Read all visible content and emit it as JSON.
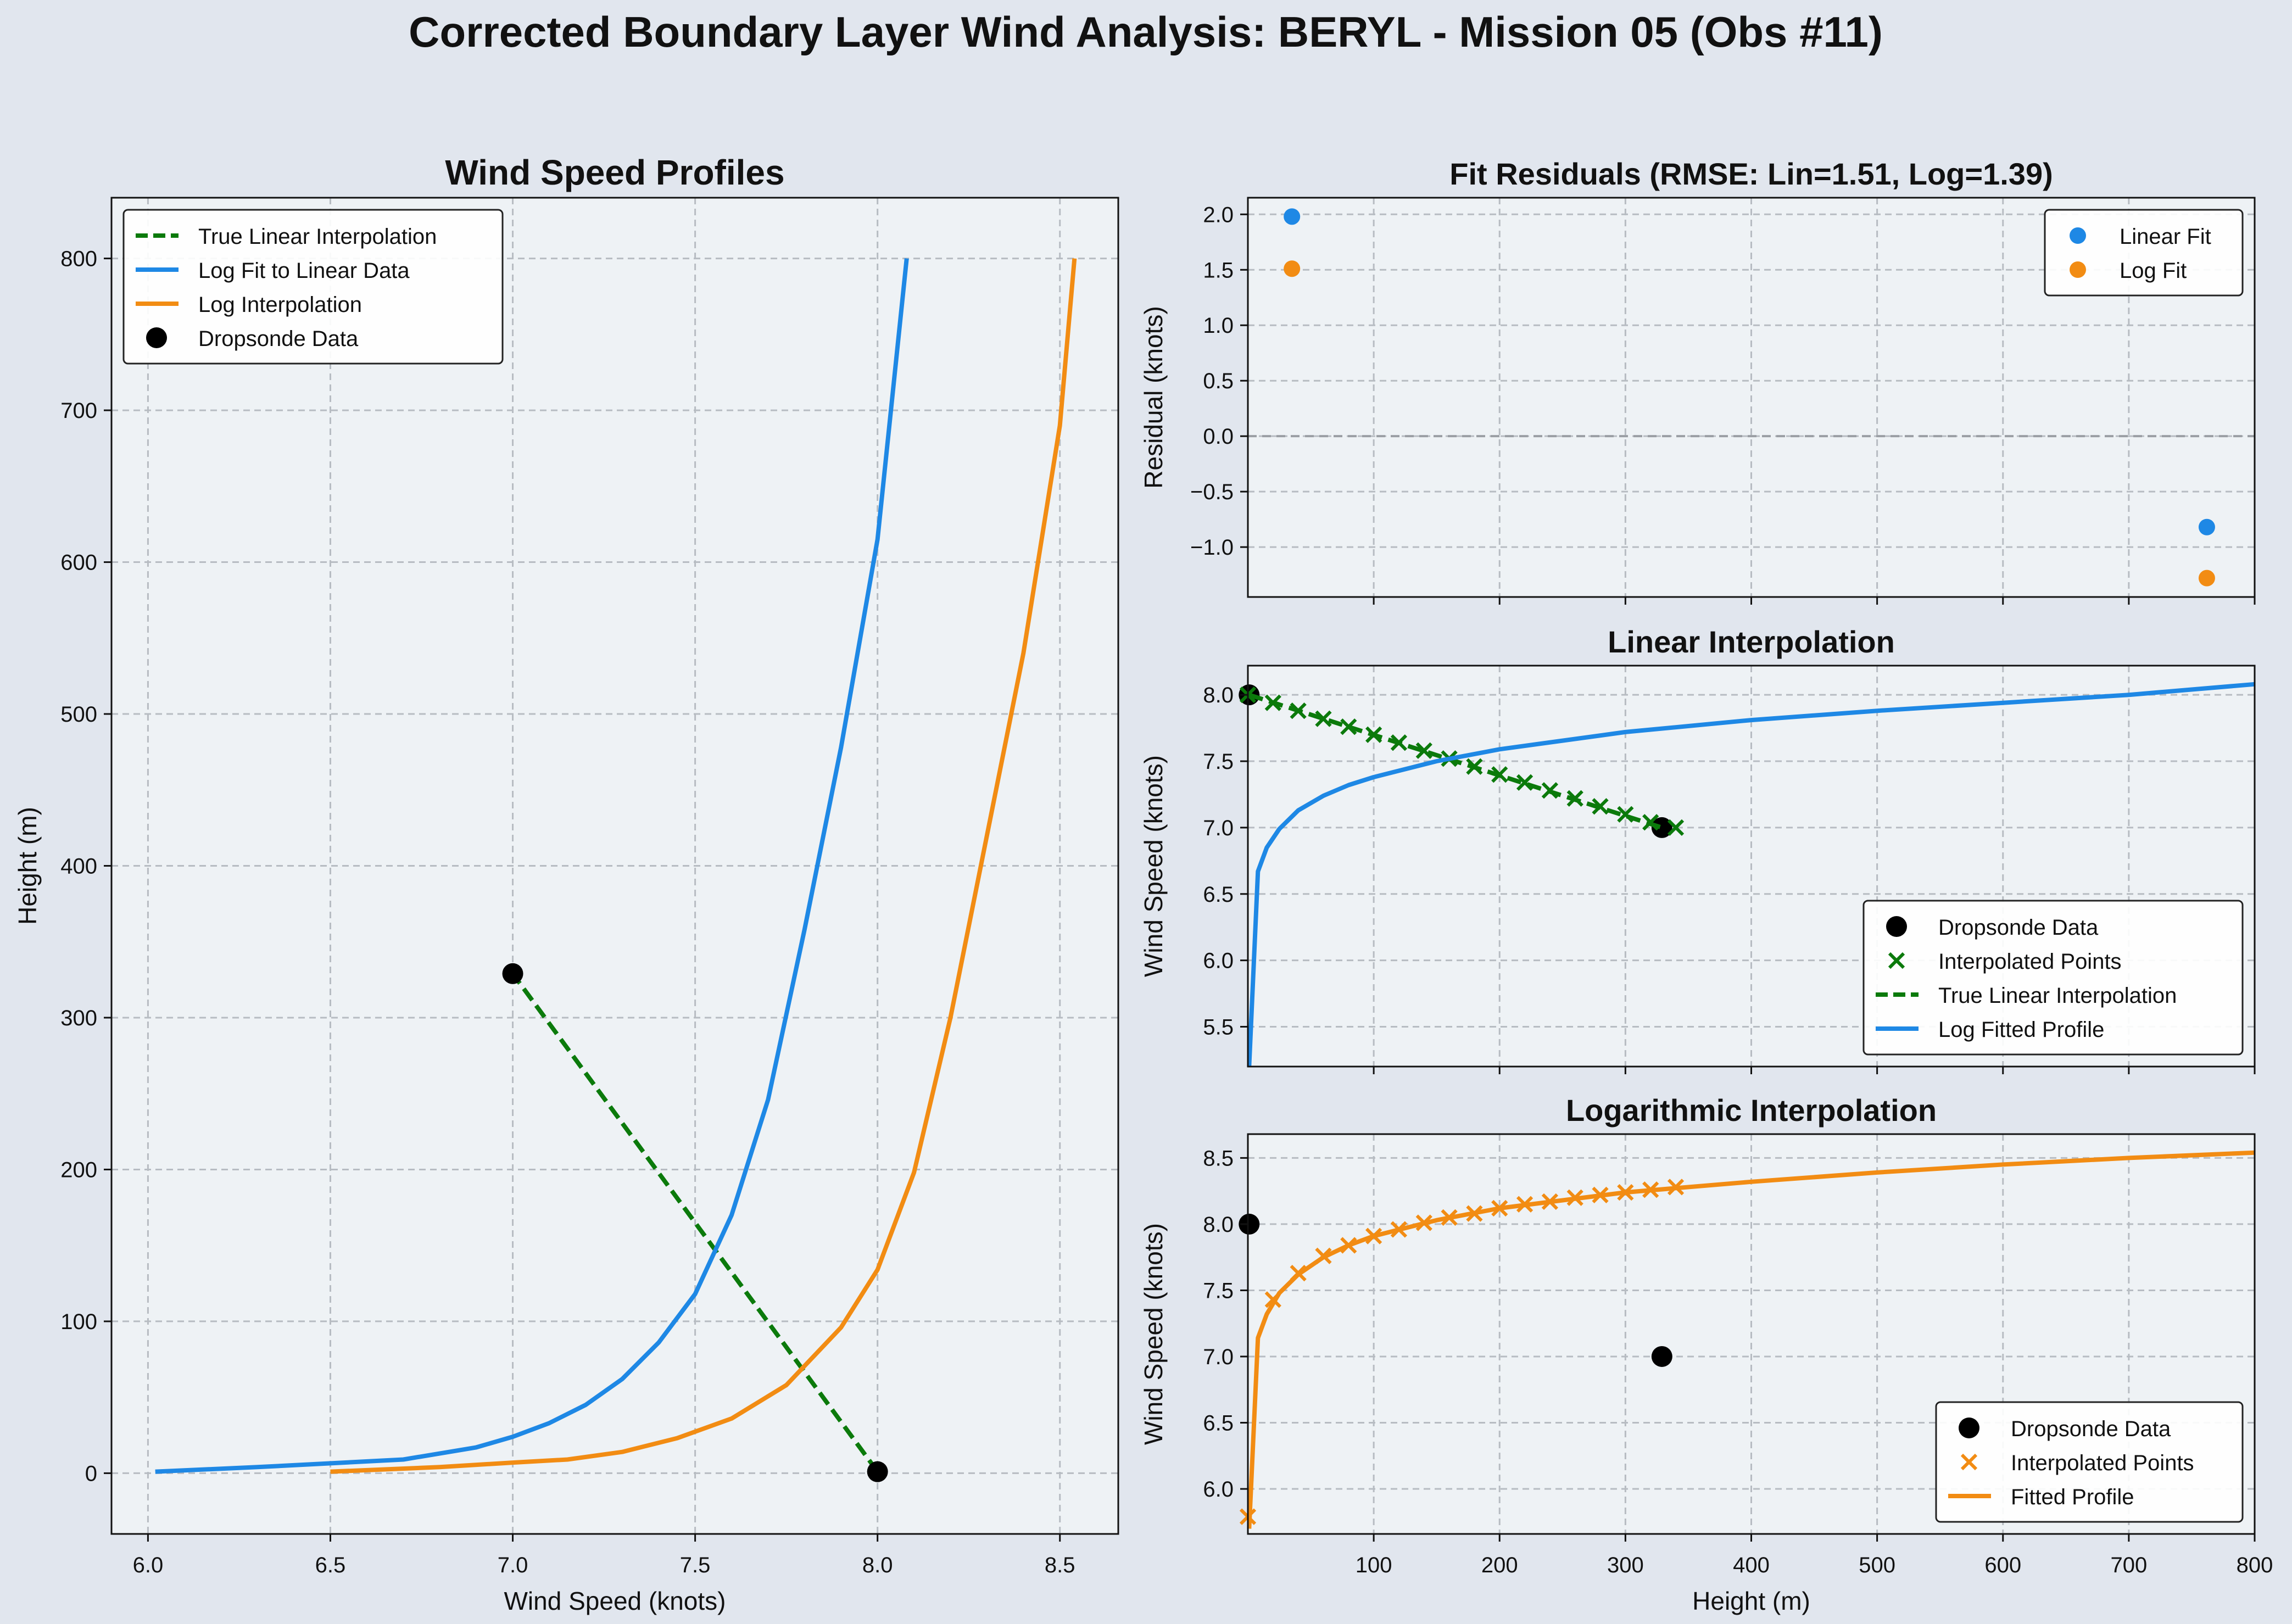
{
  "figure_title": "Corrected Boundary Layer Wind Analysis: BERYL - Mission 05 (Obs #11)",
  "colors": {
    "background": "#e1e6ee",
    "plot_bg": "#eef2f5",
    "linear": "#0b7a0b",
    "log_fit": "#1e88e5",
    "log_interp": "#f28c13",
    "data": "#000000",
    "grid": "#b7bcc2"
  },
  "chart_data": [
    {
      "id": "profiles",
      "type": "line",
      "title": "Wind Speed Profiles",
      "xlabel": "Wind Speed (knots)",
      "ylabel": "Height (m)",
      "xlim": [
        5.9,
        8.66
      ],
      "ylim": [
        -40,
        840
      ],
      "xticks": [
        6.0,
        6.5,
        7.0,
        7.5,
        8.0,
        8.5
      ],
      "xtick_labels": [
        "6.0",
        "6.5",
        "7.0",
        "7.5",
        "8.0",
        "8.5"
      ],
      "yticks": [
        0,
        100,
        200,
        300,
        400,
        500,
        600,
        700,
        800
      ],
      "ytick_labels": [
        "0",
        "100",
        "200",
        "300",
        "400",
        "500",
        "600",
        "700",
        "800"
      ],
      "grid": true,
      "legend_loc": "upper-left",
      "series": [
        {
          "name": "True Linear Interpolation",
          "kind": "line",
          "style": "dashed",
          "color": "#0b7a0b",
          "x": [
            8.0,
            7.0
          ],
          "y": [
            1,
            329
          ]
        },
        {
          "name": "Log Fit to Linear Data",
          "kind": "line",
          "style": "solid",
          "color": "#1e88e5",
          "x": [
            6.02,
            6.3,
            6.7,
            6.9,
            7.0,
            7.1,
            7.2,
            7.3,
            7.4,
            7.5,
            7.6,
            7.7,
            7.8,
            7.9,
            8.0,
            8.08
          ],
          "y": [
            1,
            4,
            9,
            17,
            24,
            33,
            45,
            62,
            86,
            118,
            170,
            246,
            358,
            478,
            615,
            800
          ]
        },
        {
          "name": "Log Interpolation",
          "kind": "line",
          "style": "solid",
          "color": "#f28c13",
          "x": [
            6.5,
            6.8,
            7.0,
            7.15,
            7.3,
            7.45,
            7.6,
            7.75,
            7.9,
            8.0,
            8.1,
            8.2,
            8.3,
            8.4,
            8.5,
            8.54
          ],
          "y": [
            1,
            4,
            7,
            9,
            14,
            23,
            36,
            58,
            96,
            134,
            198,
            300,
            420,
            540,
            690,
            800
          ]
        },
        {
          "name": "Dropsonde Data",
          "kind": "scatter",
          "marker": "circle",
          "color": "#000000",
          "x": [
            8.0,
            7.0
          ],
          "y": [
            1,
            329
          ]
        }
      ]
    },
    {
      "id": "residuals",
      "type": "scatter",
      "title": "Fit Residuals (RMSE: Lin=1.51, Log=1.39)",
      "xlabel": "",
      "ylabel": "Residual (knots)",
      "xlim": [
        0,
        800
      ],
      "ylim": [
        -1.45,
        2.15
      ],
      "xticks": [
        100,
        200,
        300,
        400,
        500,
        600,
        700,
        800
      ],
      "yticks": [
        -1.0,
        -0.5,
        0.0,
        0.5,
        1.0,
        1.5,
        2.0
      ],
      "ytick_labels": [
        "−1.0",
        "−0.5",
        "0.0",
        "0.5",
        "1.0",
        "1.5",
        "2.0"
      ],
      "grid": true,
      "zero_line": true,
      "legend_loc": "upper-right",
      "series": [
        {
          "name": "Linear Fit",
          "kind": "scatter",
          "marker": "circle",
          "color": "#1e88e5",
          "x": [
            35,
            762
          ],
          "y": [
            1.98,
            -0.82
          ]
        },
        {
          "name": "Log Fit",
          "kind": "scatter",
          "marker": "circle",
          "color": "#f28c13",
          "x": [
            35,
            762
          ],
          "y": [
            1.51,
            -1.28
          ]
        }
      ]
    },
    {
      "id": "linear",
      "type": "line",
      "title": "Linear Interpolation",
      "xlabel": "",
      "ylabel": "Wind Speed (knots)",
      "xlim": [
        0,
        800
      ],
      "ylim": [
        5.2,
        8.22
      ],
      "xticks": [
        100,
        200,
        300,
        400,
        500,
        600,
        700,
        800
      ],
      "yticks": [
        5.5,
        6.0,
        6.5,
        7.0,
        7.5,
        8.0
      ],
      "ytick_labels": [
        "5.5",
        "6.0",
        "6.5",
        "7.0",
        "7.5",
        "8.0"
      ],
      "grid": true,
      "legend_loc": "lower-right",
      "series": [
        {
          "name": "Dropsonde Data",
          "kind": "scatter",
          "marker": "circle",
          "color": "#000000",
          "x": [
            1,
            329
          ],
          "y": [
            8.0,
            7.0
          ]
        },
        {
          "name": "Interpolated Points",
          "kind": "scatter",
          "marker": "x",
          "color": "#0b7a0b",
          "x": [
            0,
            20,
            40,
            60,
            80,
            100,
            120,
            140,
            160,
            180,
            200,
            220,
            240,
            260,
            280,
            300,
            320,
            340
          ],
          "y": [
            8.0,
            7.94,
            7.88,
            7.82,
            7.76,
            7.7,
            7.64,
            7.58,
            7.52,
            7.46,
            7.4,
            7.34,
            7.28,
            7.22,
            7.16,
            7.1,
            7.04,
            7.0
          ]
        },
        {
          "name": "True Linear Interpolation",
          "kind": "line",
          "style": "dashed",
          "color": "#0b7a0b",
          "x": [
            1,
            329
          ],
          "y": [
            8.0,
            7.0
          ]
        },
        {
          "name": "Log Fitted Profile",
          "kind": "line",
          "style": "solid",
          "color": "#1e88e5",
          "x": [
            1,
            8,
            15,
            25,
            40,
            60,
            80,
            100,
            150,
            200,
            300,
            400,
            500,
            600,
            700,
            800
          ],
          "y": [
            5.2,
            6.67,
            6.85,
            6.99,
            7.13,
            7.24,
            7.32,
            7.38,
            7.5,
            7.59,
            7.72,
            7.81,
            7.88,
            7.94,
            8.0,
            8.08
          ]
        }
      ]
    },
    {
      "id": "logarithmic",
      "type": "line",
      "title": "Logarithmic Interpolation",
      "xlabel": "Height (m)",
      "ylabel": "Wind Speed (knots)",
      "xlim": [
        0,
        800
      ],
      "ylim": [
        5.66,
        8.68
      ],
      "xticks": [
        100,
        200,
        300,
        400,
        500,
        600,
        700,
        800
      ],
      "xtick_labels": [
        "100",
        "200",
        "300",
        "400",
        "500",
        "600",
        "700",
        "800"
      ],
      "yticks": [
        6.0,
        6.5,
        7.0,
        7.5,
        8.0,
        8.5
      ],
      "ytick_labels": [
        "6.0",
        "6.5",
        "7.0",
        "7.5",
        "8.0",
        "8.5"
      ],
      "grid": true,
      "legend_loc": "lower-right",
      "series": [
        {
          "name": "Dropsonde Data",
          "kind": "scatter",
          "marker": "circle",
          "color": "#000000",
          "x": [
            1,
            329
          ],
          "y": [
            8.0,
            7.0
          ]
        },
        {
          "name": "Interpolated Points",
          "kind": "scatter",
          "marker": "x",
          "color": "#f28c13",
          "x": [
            0,
            20,
            40,
            60,
            80,
            100,
            120,
            140,
            160,
            180,
            200,
            220,
            240,
            260,
            280,
            300,
            320,
            340
          ],
          "y": [
            5.79,
            7.43,
            7.63,
            7.76,
            7.84,
            7.91,
            7.96,
            8.01,
            8.05,
            8.08,
            8.12,
            8.15,
            8.17,
            8.2,
            8.22,
            8.24,
            8.26,
            8.28
          ]
        },
        {
          "name": "Fitted Profile",
          "kind": "line",
          "style": "solid",
          "color": "#f28c13",
          "x": [
            1,
            8,
            15,
            25,
            40,
            60,
            80,
            100,
            150,
            200,
            300,
            400,
            500,
            600,
            700,
            800
          ],
          "y": [
            5.7,
            7.14,
            7.32,
            7.48,
            7.62,
            7.75,
            7.84,
            7.91,
            8.03,
            8.12,
            8.24,
            8.32,
            8.39,
            8.45,
            8.5,
            8.54
          ]
        }
      ]
    }
  ]
}
